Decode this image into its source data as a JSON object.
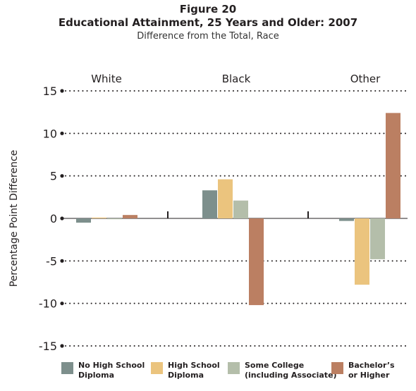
{
  "header": {
    "figure_label": "Figure 20",
    "title": "Educational Attainment, 25 Years and Older: 2007",
    "subtitle": "Difference from the Total, Race"
  },
  "colors": {
    "no_hs": "#7d8f8c",
    "hs": "#ebc47e",
    "some_college": "#b4beaa",
    "bachelors": "#bb7f62",
    "text": "#231f20"
  },
  "chart_data": {
    "type": "bar",
    "categories": [
      "White",
      "Black",
      "Other"
    ],
    "ylabel": "Percentage Point Difference",
    "ylim": [
      -15,
      15
    ],
    "yticks": [
      15,
      10,
      5,
      0,
      -5,
      -10,
      -15
    ],
    "ytick_labels": [
      "15",
      "10",
      "5",
      "0",
      "-5",
      "-10",
      "-15"
    ],
    "grid": "dotted-horizontal",
    "legend_position": "bottom",
    "series": [
      {
        "name": "No High School Diploma",
        "values": [
          -0.5,
          3.3,
          -0.3
        ],
        "color": "#7d8f8c"
      },
      {
        "name": "High School Diploma",
        "values": [
          0.1,
          4.6,
          -7.8
        ],
        "color": "#ebc47e"
      },
      {
        "name": "Some College (including Associate)",
        "values": [
          -0.1,
          2.1,
          -4.8
        ],
        "color": "#b4beaa"
      },
      {
        "name": "Bachelor's or Higher",
        "values": [
          0.4,
          -10.2,
          12.4
        ],
        "color": "#bb7f62"
      }
    ]
  },
  "legend": [
    {
      "line1": "No High School",
      "line2": "Diploma",
      "color": "#7d8f8c"
    },
    {
      "line1": "High School",
      "line2": "Diploma",
      "color": "#ebc47e"
    },
    {
      "line1": "Some College",
      "line2": "(including Associate)",
      "color": "#b4beaa"
    },
    {
      "line1": "Bachelor’s",
      "line2": "or Higher",
      "color": "#bb7f62"
    }
  ]
}
